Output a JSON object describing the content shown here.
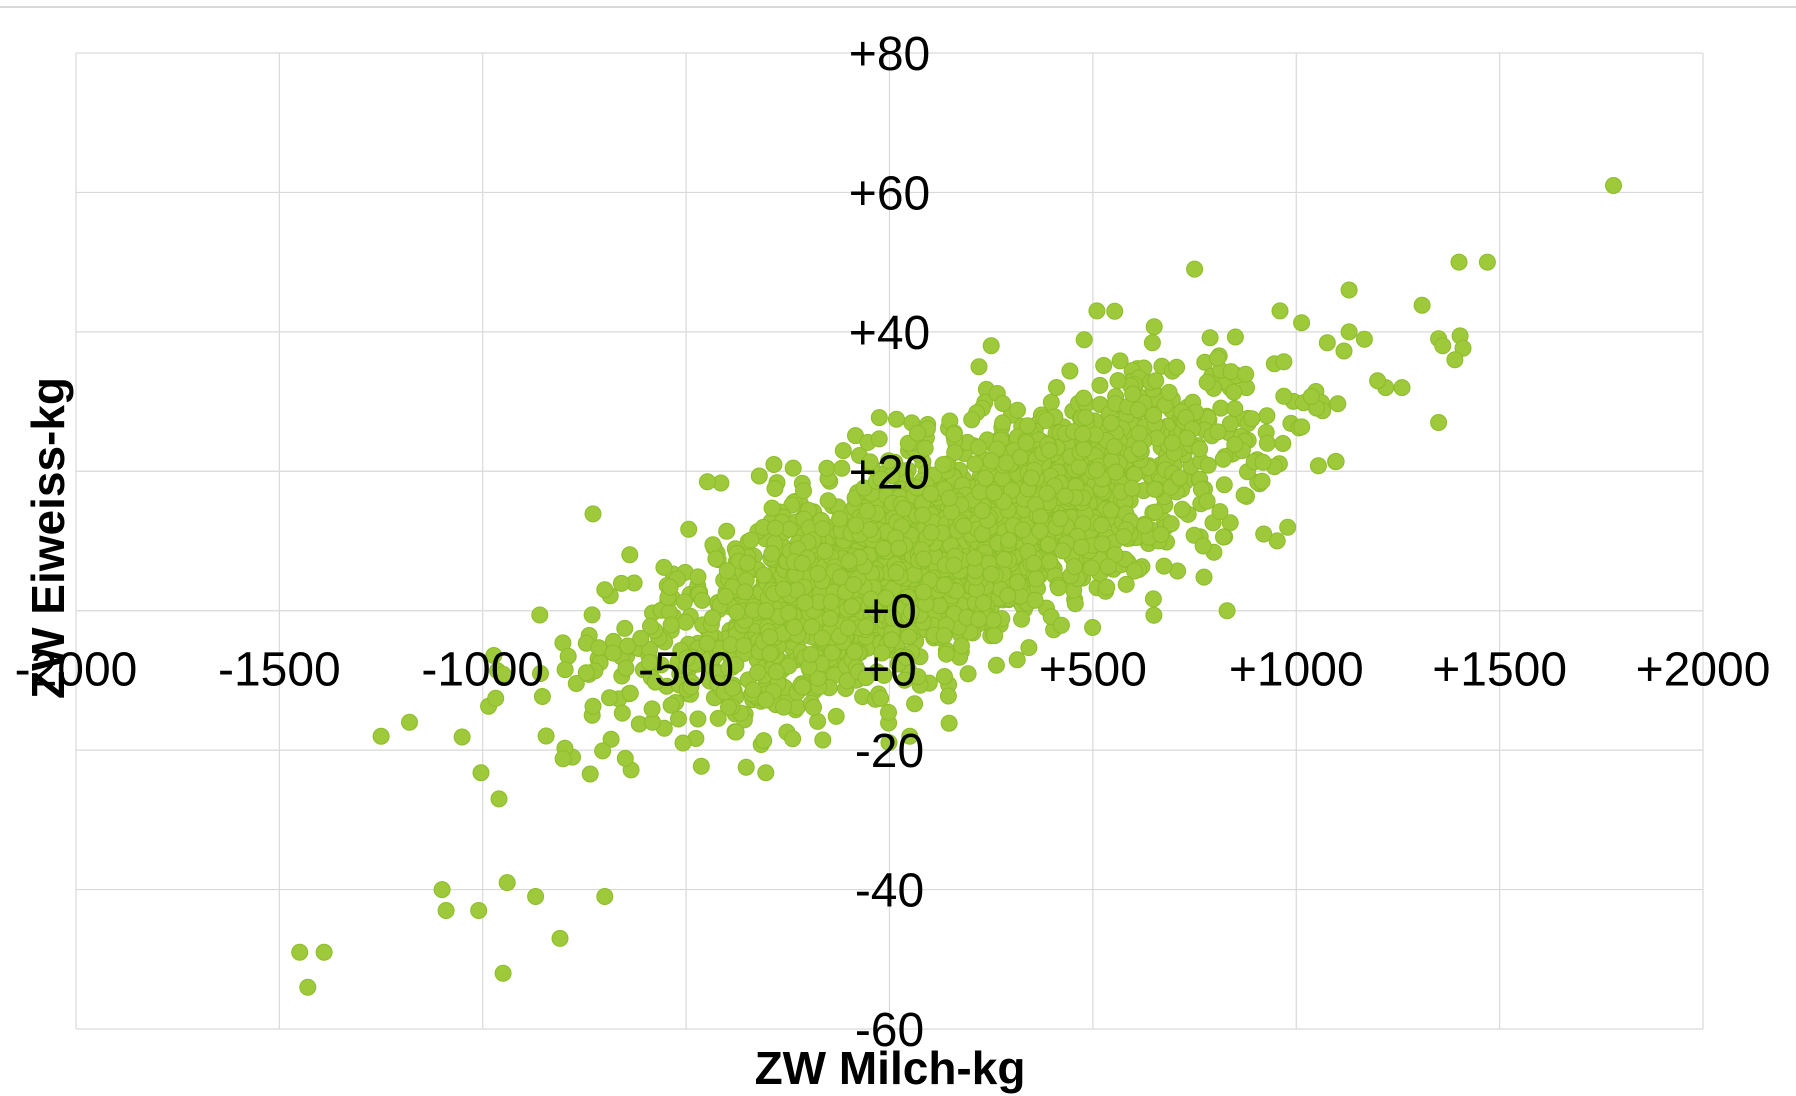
{
  "chart_data": {
    "type": "scatter",
    "xlabel": "ZW Milch-kg",
    "ylabel": "ZW Eiweiss-kg",
    "xlim": [
      -2000,
      2000
    ],
    "ylim": [
      -60,
      80
    ],
    "x_ticks": [
      -2000,
      -1500,
      -1000,
      -500,
      0,
      500,
      1000,
      1500,
      2000
    ],
    "x_tick_labels": [
      "-2000",
      "-1500",
      "-1000",
      "-500",
      "+0",
      "+500",
      "+1000",
      "+1500",
      "+2000"
    ],
    "y_ticks": [
      80,
      60,
      40,
      20,
      0,
      -20,
      -40,
      -60
    ],
    "y_tick_labels": [
      "+80",
      "+60",
      "+40",
      "+20",
      "+0",
      "-20",
      "-40",
      "-60"
    ],
    "grid": true,
    "legend": "none",
    "marker_color": "#9dc93a",
    "grid_color": "#d9d9d9",
    "point_count_approx": 2500,
    "outlier_points": [
      {
        "x": 1780,
        "y": 61
      },
      {
        "x": 1400,
        "y": 50
      },
      {
        "x": 1470,
        "y": 50
      },
      {
        "x": 1350,
        "y": 39
      },
      {
        "x": 1360,
        "y": 38
      },
      {
        "x": 1390,
        "y": 36
      },
      {
        "x": 1350,
        "y": 27
      },
      {
        "x": 1130,
        "y": 46
      },
      {
        "x": 1130,
        "y": 40
      },
      {
        "x": 1220,
        "y": 32
      },
      {
        "x": 1260,
        "y": 32
      },
      {
        "x": 510,
        "y": 43
      },
      {
        "x": 750,
        "y": 49
      },
      {
        "x": 250,
        "y": 38
      },
      {
        "x": 220,
        "y": 35
      },
      {
        "x": 960,
        "y": 43
      },
      {
        "x": 1200,
        "y": 33
      },
      {
        "x": 830,
        "y": 0
      },
      {
        "x": 920,
        "y": 11
      },
      {
        "x": 50,
        "y": -18
      },
      {
        "x": -1250,
        "y": -18
      },
      {
        "x": -1180,
        "y": -16
      },
      {
        "x": -1450,
        "y": -49
      },
      {
        "x": -1390,
        "y": -49
      },
      {
        "x": -1430,
        "y": -54
      },
      {
        "x": -1010,
        "y": -43
      },
      {
        "x": -1090,
        "y": -43
      },
      {
        "x": -1100,
        "y": -40
      },
      {
        "x": -950,
        "y": -52
      },
      {
        "x": -810,
        "y": -47
      },
      {
        "x": -700,
        "y": -41
      },
      {
        "x": -940,
        "y": -39
      },
      {
        "x": -870,
        "y": -41
      },
      {
        "x": -960,
        "y": -27
      },
      {
        "x": -700,
        "y": 3
      }
    ]
  }
}
